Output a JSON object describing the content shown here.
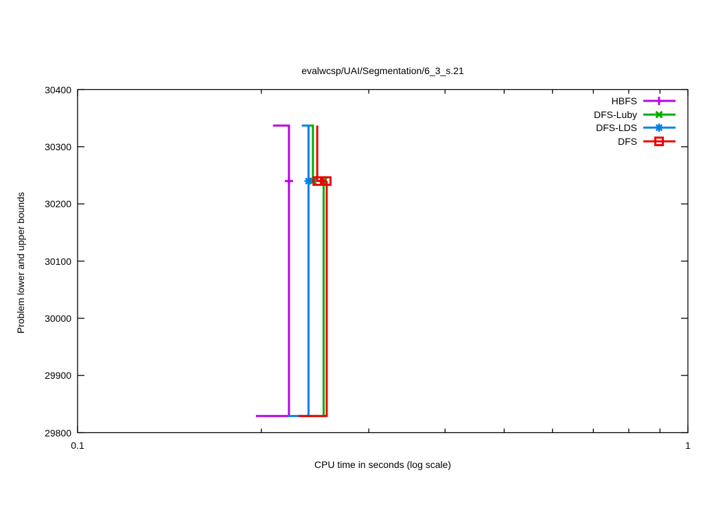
{
  "chart_data": {
    "type": "line",
    "title": "evalwcsp/UAI/Segmentation/6_3_s.21",
    "xlabel": "CPU time in seconds (log scale)",
    "ylabel": "Problem lower and upper bounds",
    "x_scale": "log",
    "xlim": [
      0.1,
      1
    ],
    "ylim": [
      29800,
      30400
    ],
    "grid": false,
    "legend_position": "top-right-inside",
    "x_ticks": [
      {
        "label": "0.1",
        "value": 0.1
      },
      {
        "label": "1",
        "value": 1
      }
    ],
    "x_minor_ticks": [
      0.2,
      0.3,
      0.4,
      0.5,
      0.6,
      0.7,
      0.8,
      0.9
    ],
    "y_ticks": [
      {
        "label": "29800",
        "value": 29800
      },
      {
        "label": "29900",
        "value": 29900
      },
      {
        "label": "30000",
        "value": 30000
      },
      {
        "label": "30100",
        "value": 30100
      },
      {
        "label": "30200",
        "value": 30200
      },
      {
        "label": "30300",
        "value": 30300
      },
      {
        "label": "30400",
        "value": 30400
      }
    ],
    "series": [
      {
        "name": "HBFS",
        "color": "#BB00E6",
        "marker": "plus",
        "lines": [
          [
            [
              0.209,
              30337
            ],
            [
              0.222,
              30337
            ],
            [
              0.222,
              30240
            ]
          ],
          [
            [
              0.196,
              29829
            ],
            [
              0.222,
              29829
            ],
            [
              0.222,
              30240
            ]
          ]
        ],
        "marker_points": [
          [
            0.222,
            30240
          ]
        ]
      },
      {
        "name": "DFS-Luby",
        "color": "#00AD00",
        "marker": "x",
        "lines": [
          [
            [
              0.24,
              30337
            ],
            [
              0.243,
              30337
            ],
            [
              0.243,
              30240
            ],
            [
              0.253,
              30240
            ]
          ],
          [
            [
              0.236,
              29829
            ],
            [
              0.253,
              29829
            ],
            [
              0.253,
              30240
            ]
          ]
        ],
        "marker_points": [
          [
            0.243,
            30240
          ],
          [
            0.253,
            30240
          ]
        ]
      },
      {
        "name": "DFS-LDS",
        "color": "#0080E8",
        "marker": "star",
        "lines": [
          [
            [
              0.233,
              30337
            ],
            [
              0.239,
              30337
            ],
            [
              0.239,
              30240
            ]
          ],
          [
            [
              0.221,
              29829
            ],
            [
              0.239,
              29829
            ],
            [
              0.239,
              30240
            ]
          ]
        ],
        "marker_points": [
          [
            0.239,
            30240
          ]
        ]
      },
      {
        "name": "DFS",
        "color": "#EE0000",
        "marker": "square",
        "lines": [
          [
            [
              0.247,
              30337
            ],
            [
              0.247,
              30240
            ],
            [
              0.256,
              30240
            ]
          ],
          [
            [
              0.23,
              29829
            ],
            [
              0.256,
              29829
            ],
            [
              0.256,
              30240
            ]
          ]
        ],
        "marker_points": [
          [
            0.247,
            30240
          ],
          [
            0.256,
            30240
          ]
        ]
      }
    ],
    "optimum_value": 30240,
    "initial_upper_bound": 30337,
    "initial_lower_bound": 29829
  }
}
